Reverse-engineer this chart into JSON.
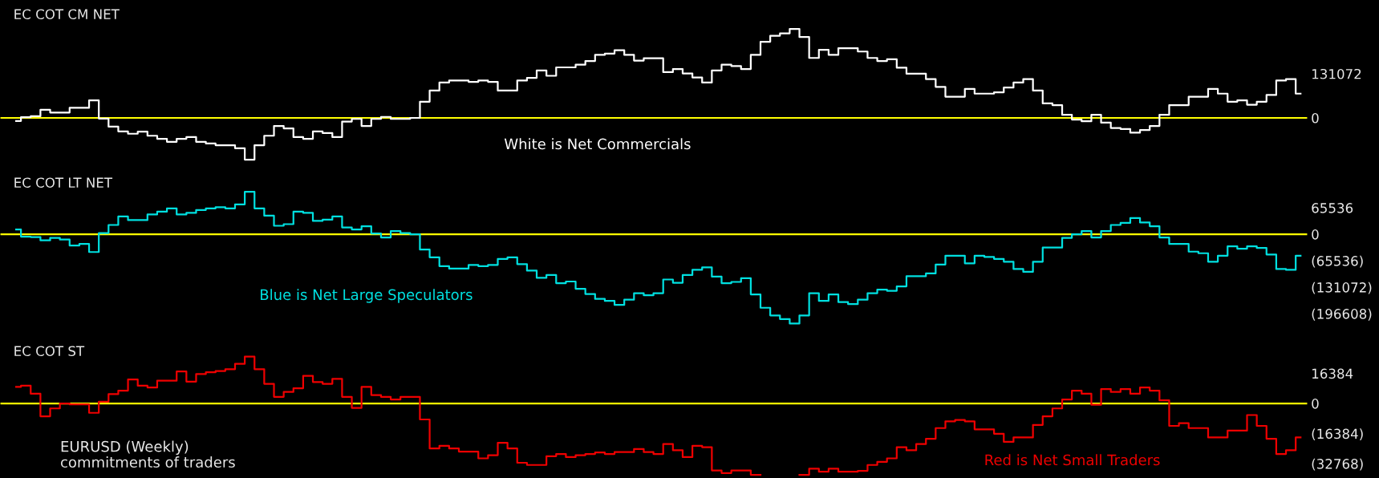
{
  "chart_data": [
    {
      "type": "step",
      "title": "EC COT CM NET",
      "categories": [
        null,
        null,
        null,
        null,
        null,
        null,
        null,
        null,
        null,
        null,
        null,
        null,
        null,
        null,
        null,
        null,
        null,
        null,
        null,
        null,
        null,
        null,
        null,
        null,
        null,
        null,
        null,
        null,
        null,
        null,
        null,
        null,
        null,
        null,
        null,
        null,
        null,
        null,
        null,
        null,
        null,
        null,
        null,
        null,
        null,
        null,
        null,
        null,
        null,
        null,
        null,
        null,
        null,
        null,
        null,
        null,
        null,
        null,
        null,
        null,
        null,
        null,
        null,
        null,
        null,
        null,
        null,
        null,
        null,
        null,
        null,
        null,
        null,
        null,
        null,
        null,
        null,
        null,
        null,
        null,
        null,
        null,
        null,
        null,
        null,
        null,
        null,
        null,
        null,
        null,
        null,
        null,
        null,
        null,
        null,
        null,
        null,
        null,
        null,
        null,
        null,
        null,
        null,
        null,
        null,
        null,
        null,
        null,
        null,
        null,
        null,
        null,
        null,
        null,
        null,
        null,
        null,
        null,
        null,
        null,
        null,
        null,
        null,
        null,
        null,
        null,
        null,
        null,
        null,
        null,
        null,
        null,
        null
      ],
      "series": [
        {
          "color": "#ffffff",
          "values": [
            -9000,
            2000,
            5000,
            24000,
            16000,
            16000,
            30000,
            30000,
            52000,
            -2000,
            -26000,
            -40000,
            -47000,
            -41000,
            -53000,
            -62000,
            -71000,
            -62000,
            -57000,
            -71000,
            -76000,
            -81000,
            -81000,
            -90000,
            -124000,
            -81000,
            -53000,
            -24000,
            -31000,
            -57000,
            -62000,
            -40000,
            -45000,
            -57000,
            -11000,
            -3000,
            -24000,
            -3000,
            3000,
            -3000,
            -3000,
            0,
            48000,
            81000,
            105000,
            111000,
            111000,
            107000,
            111000,
            107000,
            81000,
            81000,
            111000,
            119000,
            141000,
            125000,
            150000,
            150000,
            158000,
            169000,
            187000,
            191000,
            201000,
            187000,
            170000,
            177000,
            177000,
            136000,
            145000,
            132000,
            120000,
            105000,
            141000,
            158000,
            154000,
            145000,
            187000,
            226000,
            244000,
            251000,
            264000,
            240000,
            178000,
            202000,
            187000,
            207000,
            207000,
            197000,
            178000,
            169000,
            174000,
            149000,
            131000,
            131000,
            115000,
            92000,
            63000,
            63000,
            86000,
            72000,
            72000,
            76000,
            90000,
            105000,
            115000,
            81000,
            43000,
            38000,
            9000,
            -5000,
            -10000,
            9000,
            -14000,
            -30000,
            -33000,
            -44000,
            -36000,
            -24000,
            9000,
            38000,
            38000,
            63000,
            63000,
            86000,
            72000,
            48000,
            52000,
            39000,
            48000,
            68000,
            111000,
            115000,
            72000
          ]
        }
      ],
      "ylim": [
        -150000,
        350000
      ],
      "yticks": [
        0,
        131072
      ],
      "tick_labels": "y",
      "ref_lines": [
        {
          "axis": "y",
          "value": 0,
          "color": "#ffff00"
        }
      ],
      "annotations": [
        "White is Net Commercials"
      ]
    },
    {
      "type": "step",
      "title": "EC COT LT NET",
      "categories": [
        null,
        null,
        null,
        null,
        null,
        null,
        null,
        null,
        null,
        null,
        null,
        null,
        null,
        null,
        null,
        null,
        null,
        null,
        null,
        null,
        null,
        null,
        null,
        null,
        null,
        null,
        null,
        null,
        null,
        null,
        null,
        null,
        null,
        null,
        null,
        null,
        null,
        null,
        null,
        null,
        null,
        null,
        null,
        null,
        null,
        null,
        null,
        null,
        null,
        null,
        null,
        null,
        null,
        null,
        null,
        null,
        null,
        null,
        null,
        null,
        null,
        null,
        null,
        null,
        null,
        null,
        null,
        null,
        null,
        null,
        null,
        null,
        null,
        null,
        null,
        null,
        null,
        null,
        null,
        null,
        null,
        null,
        null,
        null,
        null,
        null,
        null,
        null,
        null,
        null,
        null,
        null,
        null,
        null,
        null,
        null,
        null,
        null,
        null,
        null,
        null,
        null,
        null,
        null,
        null,
        null,
        null,
        null,
        null,
        null,
        null,
        null,
        null,
        null,
        null,
        null,
        null,
        null,
        null,
        null,
        null,
        null,
        null,
        null,
        null,
        null,
        null,
        null,
        null,
        null,
        null,
        null,
        null
      ],
      "series": [
        {
          "color": "#00e0e0",
          "values": [
            12000,
            -6000,
            -7000,
            -15000,
            -9000,
            -13000,
            -28000,
            -24000,
            -44000,
            3000,
            23000,
            44000,
            35000,
            35000,
            49000,
            56000,
            64000,
            49000,
            53000,
            60000,
            64000,
            67000,
            64000,
            74000,
            105000,
            64000,
            46000,
            21000,
            25000,
            56000,
            53000,
            33000,
            36000,
            44000,
            17000,
            12000,
            20000,
            2000,
            -8000,
            8000,
            3000,
            0,
            -38000,
            -57000,
            -79000,
            -85000,
            -85000,
            -76000,
            -79000,
            -76000,
            -61000,
            -57000,
            -74000,
            -90000,
            -108000,
            -101000,
            -121000,
            -117000,
            -135000,
            -148000,
            -160000,
            -165000,
            -175000,
            -162000,
            -146000,
            -151000,
            -146000,
            -112000,
            -120000,
            -101000,
            -88000,
            -82000,
            -105000,
            -121000,
            -118000,
            -109000,
            -149000,
            -182000,
            -201000,
            -210000,
            -221000,
            -201000,
            -146000,
            -165000,
            -149000,
            -168000,
            -173000,
            -162000,
            -146000,
            -137000,
            -140000,
            -129000,
            -104000,
            -104000,
            -97000,
            -75000,
            -53000,
            -53000,
            -72000,
            -53000,
            -56000,
            -61000,
            -68000,
            -86000,
            -93000,
            -68000,
            -33000,
            -33000,
            -9000,
            0,
            8000,
            -8000,
            8000,
            23000,
            28000,
            40000,
            29000,
            20000,
            -8000,
            -24000,
            -24000,
            -43000,
            -47000,
            -68000,
            -53000,
            -30000,
            -36000,
            -30000,
            -34000,
            -50000,
            -86000,
            -88000,
            -53000
          ]
        }
      ],
      "ylim": [
        -254000,
        163000
      ],
      "yticks": [
        65536,
        0,
        {
          "value": -65536,
          "label": "(65536)"
        },
        {
          "value": -131072,
          "label": "(131072)"
        },
        {
          "value": -196608,
          "label": "(196608)"
        }
      ],
      "tick_labels": "y",
      "ref_lines": [
        {
          "axis": "y",
          "value": 0,
          "color": "#ffff00"
        }
      ],
      "annotations": [
        "Blue is Net Large Speculators"
      ]
    },
    {
      "type": "step",
      "title": "EC COT ST",
      "categories": [
        null,
        null,
        null,
        null,
        null,
        null,
        null,
        null,
        null,
        null,
        null,
        null,
        null,
        null,
        null,
        null,
        null,
        null,
        null,
        null,
        null,
        null,
        null,
        null,
        null,
        null,
        null,
        null,
        null,
        null,
        null,
        null,
        null,
        null,
        null,
        null,
        null,
        null,
        null,
        null,
        null,
        null,
        null,
        null,
        null,
        null,
        null,
        null,
        null,
        null,
        null,
        null,
        null,
        null,
        null,
        null,
        null,
        null,
        null,
        null,
        null,
        null,
        null,
        null,
        null,
        null,
        null,
        null,
        null,
        null,
        null,
        null,
        null,
        null,
        null,
        null,
        null,
        null,
        null,
        null,
        null,
        null,
        null,
        null,
        null,
        null,
        null,
        null,
        null,
        null,
        null,
        null,
        null,
        null,
        null,
        null,
        null,
        null,
        null,
        null,
        null,
        null,
        null,
        null,
        null,
        null,
        null,
        null,
        null,
        null,
        null,
        null,
        null,
        null,
        null,
        null,
        null,
        null,
        null,
        null,
        null,
        null,
        null,
        null,
        null,
        null,
        null,
        null,
        null,
        null,
        null,
        null,
        null
      ],
      "series": [
        {
          "color": "#ee0000",
          "values": [
            9000,
            9700,
            5300,
            -7000,
            -2700,
            0,
            -500,
            -500,
            -5100,
            1000,
            5100,
            7000,
            13100,
            9700,
            8700,
            12400,
            12400,
            17500,
            11900,
            16000,
            17000,
            17700,
            18700,
            21600,
            25500,
            18700,
            10700,
            3600,
            6300,
            8300,
            15100,
            11700,
            10700,
            13400,
            3600,
            -2400,
            9000,
            4600,
            3600,
            2200,
            3600,
            3600,
            -8700,
            -24500,
            -23100,
            -24500,
            -26200,
            -26200,
            -29900,
            -28200,
            -21400,
            -24500,
            -32300,
            -33500,
            -33500,
            -28700,
            -27500,
            -29200,
            -28200,
            -27500,
            -26700,
            -27500,
            -26500,
            -26500,
            -24800,
            -26500,
            -27500,
            -22100,
            -25500,
            -29200,
            -23100,
            -23800,
            -36500,
            -37900,
            -36500,
            -36500,
            -38900,
            null,
            null,
            null,
            null,
            -38900,
            -35500,
            -37200,
            -35500,
            -37200,
            -37200,
            -36700,
            -33500,
            -31800,
            -29900,
            -23800,
            -25500,
            -22100,
            -19200,
            -13400,
            -9700,
            -9000,
            -9700,
            -14100,
            -14100,
            -16500,
            -20900,
            -18500,
            -18500,
            -11700,
            -7000,
            -2700,
            2200,
            7000,
            5300,
            -700,
            7800,
            6300,
            7800,
            5300,
            8700,
            7000,
            1700,
            -12200,
            -10700,
            -13400,
            -13400,
            -18500,
            -18500,
            -14800,
            -14800,
            -6300,
            -12200,
            -19200,
            -27500,
            -25500,
            -18500
          ]
        }
      ],
      "ylim": [
        -40600,
        36300
      ],
      "yticks": [
        16384,
        0,
        {
          "value": -16384,
          "label": "(16384)"
        },
        {
          "value": -32768,
          "label": "(32768)"
        }
      ],
      "tick_labels": "y",
      "ref_lines": [
        {
          "axis": "y",
          "value": 0,
          "color": "#ffff00"
        }
      ],
      "annotations": [
        "EURUSD (Weekly)\ncommitments of traders",
        "Red is Net Small Traders"
      ]
    }
  ]
}
